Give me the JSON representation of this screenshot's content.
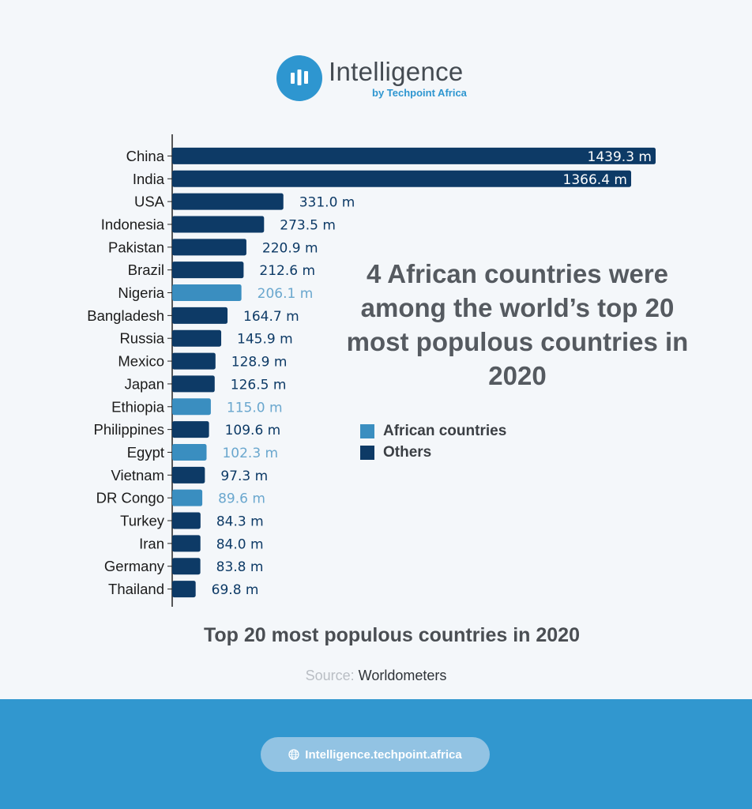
{
  "brand": {
    "name": "Intelligence",
    "byline": "by Techpoint Africa"
  },
  "colors": {
    "african": "#3a8ec0",
    "others": "#0d3a66",
    "african_label": "#6aa7ce",
    "others_label": "#0d3a66"
  },
  "headline": "4 African countries were among the world’s top 20 most populous countries in 2020",
  "legend": {
    "african": "African countries",
    "others": "Others"
  },
  "chart_data": {
    "type": "bar",
    "orientation": "horizontal",
    "title": "Top 20 most populous countries in 2020",
    "unit": "m",
    "categories": [
      "China",
      "India",
      "USA",
      "Indonesia",
      "Pakistan",
      "Brazil",
      "Nigeria",
      "Bangladesh",
      "Russia",
      "Mexico",
      "Japan",
      "Ethiopia",
      "Philippines",
      "Egypt",
      "Vietnam",
      "DR Congo",
      "Turkey",
      "Iran",
      "Germany",
      "Thailand"
    ],
    "values": [
      1439.3,
      1366.4,
      331.0,
      273.5,
      220.9,
      212.6,
      206.1,
      164.7,
      145.9,
      128.9,
      126.5,
      115.0,
      109.6,
      102.3,
      97.3,
      89.6,
      84.3,
      84.0,
      83.8,
      69.8
    ],
    "labels": [
      "1439.3 m",
      "1366.4 m",
      "331.0 m",
      "273.5 m",
      "220.9 m",
      "212.6 m",
      "206.1 m",
      "164.7 m",
      "145.9 m",
      "128.9 m",
      "126.5 m",
      "115.0 m",
      "109.6 m",
      "102.3 m",
      "97.3 m",
      "89.6 m",
      "84.3 m",
      "84.0 m",
      "83.8 m",
      "69.8 m"
    ],
    "groups": [
      "Others",
      "Others",
      "Others",
      "Others",
      "Others",
      "Others",
      "African countries",
      "Others",
      "Others",
      "Others",
      "Others",
      "African countries",
      "Others",
      "African countries",
      "Others",
      "African countries",
      "Others",
      "Others",
      "Others",
      "Others"
    ],
    "xlim": [
      0,
      1439.3
    ],
    "legend_position": "right"
  },
  "source": {
    "prefix": "Source:",
    "name": "Worldometers"
  },
  "footer": {
    "url": "Intelligence.techpoint.africa"
  }
}
